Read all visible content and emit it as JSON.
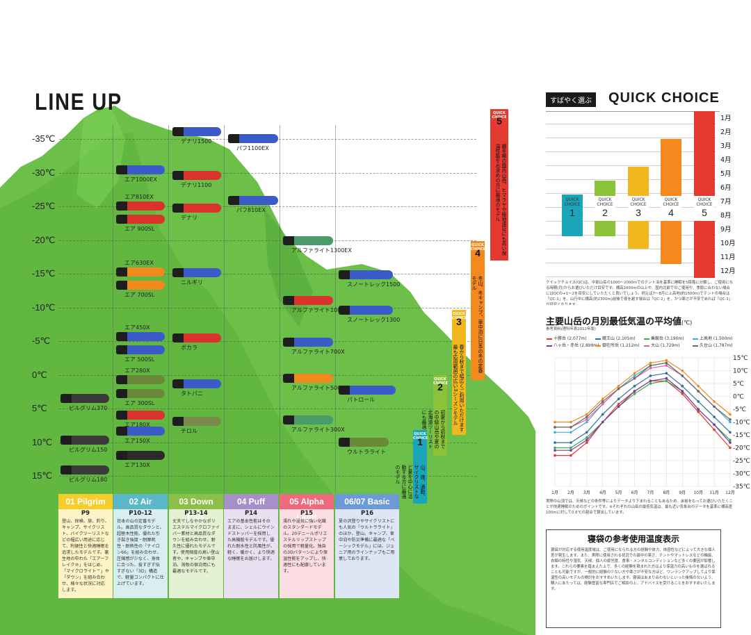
{
  "title": "LINE UP",
  "temperatures": [
    "-35℃",
    "-30℃",
    "-25℃",
    "-20℃",
    "-15℃",
    "-10℃",
    "-5℃",
    "0℃",
    "5℃",
    "10℃",
    "15℃"
  ],
  "bags": {
    "pilgrim": [
      {
        "label": "ピルグリム370",
        "color": "#3a3a3a"
      },
      {
        "label": "ピルグリム150",
        "color": "#3a3a3a"
      },
      {
        "label": "ピルグリム180",
        "color": "#3a3a3a"
      }
    ],
    "air": [
      {
        "label": "エア1000EX",
        "color": "#3b5bc8"
      },
      {
        "label": "エア810EX",
        "color": "#d9332b"
      },
      {
        "label": "エア 900SL",
        "color": "#d9332b"
      },
      {
        "label": "エア630EX",
        "color": "#f08a1c"
      },
      {
        "label": "エア 700SL",
        "color": "#f08a1c"
      },
      {
        "label": "エア450X",
        "color": "#3b5bc8"
      },
      {
        "label": "エア 500SL",
        "color": "#3b5bc8"
      },
      {
        "label": "エア280X",
        "color": "#6a8a3a"
      },
      {
        "label": "エア 300SL",
        "color": "#6a8a3a"
      },
      {
        "label": "エア180X",
        "color": "#d9332b"
      },
      {
        "label": "エア150X",
        "color": "#3b5bc8"
      },
      {
        "label": "エア130X",
        "color": "#2a2a2a"
      }
    ],
    "downplus": [
      {
        "label": "デナリ1500",
        "color": "#3b5bc8"
      },
      {
        "label": "デナリ1100",
        "color": "#d9332b"
      },
      {
        "label": "デナリ",
        "color": "#d9332b"
      },
      {
        "label": "ニルギリ",
        "color": "#3b5bc8"
      },
      {
        "label": "ポカラ",
        "color": "#d9332b"
      },
      {
        "label": "タトパニ",
        "color": "#3b5bc8"
      },
      {
        "label": "チロル",
        "color": "#7a8a4a"
      }
    ],
    "puff": [
      {
        "label": "パフ1100EX",
        "color": "#3b5bc8"
      },
      {
        "label": "パフ810EX",
        "color": "#3b5bc8"
      }
    ],
    "alphalight": [
      {
        "label": "アルファライト1300EX",
        "color": "#4a9a6a"
      },
      {
        "label": "アルファライト1000EX",
        "color": "#d9332b"
      },
      {
        "label": "アルファライト700X",
        "color": "#3b5bc8"
      },
      {
        "label": "アルファライト500X",
        "color": "#f08a1c"
      },
      {
        "label": "アルファライト300X",
        "color": "#4a9a6a"
      }
    ],
    "basic": [
      {
        "label": "スノートレック1500",
        "color": "#3b5bc8"
      },
      {
        "label": "スノートレック1300",
        "color": "#3b5bc8"
      },
      {
        "label": "パトロール",
        "color": "#3b5bc8"
      },
      {
        "label": "ウルトラライト",
        "color": "#6a8a3a"
      }
    ]
  },
  "cards": [
    {
      "name": "01 Pilgrim",
      "pages": "P9",
      "head_color": "#f5ce2c",
      "body_color": "#fdf3c6",
      "text": "登山、探検、旅、釣り、キャンプ、サイクリスト、バイクツーリストなどの幅広い用途に応じて、利便性と快適睡眠を追求したモデルです。裏生地の中わた「エアーフレイク®」をはじめ、「マイクロライト™」や「ダウン」を組み合わせ、様々な状況に対応します。"
    },
    {
      "name": "02 Air",
      "pages": "P10-12",
      "head_color": "#5ab8c8",
      "body_color": "#d8eef1",
      "text": "日本の山の定番モデル。高品質なダウンと、超極木性能、優れた引き裂き強度・耐摩耗性・耐熱性の「ナイロン66」を組み合わせ、圧縮感が少なく、身体に合った、抜すぎず伝すぎない「3D」構造で、軽量コンパクトに仕上げています。"
    },
    {
      "name": "03 Down Plus",
      "pages": "P13-14",
      "head_color": "#8cc04a",
      "body_color": "#e4f1d3",
      "text": "丈夫でしなやかなポリエステルマイクロファイバー素材と高品質なダウンを組み合わせ、耐久性に優れたモデルです。使用頻度の高い登山者や、キャンプや車中泊、海牧の宿泊用にも最適なモデルです。"
    },
    {
      "name": "04 Puff",
      "pages": "P14",
      "head_color": "#a98fc9",
      "body_color": "#e9e0f2",
      "text": "エアの基本性能はそのままに、シェルにウインドストッパーを採用した高機能モデルです。優れた耐水性と防風性が、軽く、暖かく、より快適な睡眠をお届けします。"
    },
    {
      "name": "05 Alpha Light",
      "pages": "P15",
      "head_color": "#ee6a7e",
      "body_color": "#fbdde2",
      "text": "濡れや湿気に強い化繊のスタンダードモデル。20デニールポリエステルリップストップの採用で軽量化。独自の3Dパターンにより保温性能をアップし、快適性にも配慮しています。"
    },
    {
      "name": "06/07 Basic",
      "pages": "P16",
      "head_color": "#6b9ad6",
      "body_color": "#dce6f5",
      "text": "夏の沢登りやサイクリストにも人気の「ウルトラライト」のほか、登山、キャンプ、車中泊や防災準備に最適な「ベーシックモデル」には、ジュニア用のラインナップもご用意しております。"
    }
  ],
  "quick_choice_columns": [
    {
      "tag": "QUICK CHOICE",
      "num": "1",
      "color": "#1aa6b8",
      "text": "山、旅、通勤、サイクリストなど夏を中心に活動する方に最適のモデル"
    },
    {
      "tag": "QUICK CHOICE",
      "num": "2",
      "color": "#8cc23a",
      "text": "初夏から初秋までの中級山岳や夏の北海道ツーリストにも最適"
    },
    {
      "tag": "QUICK CHOICE",
      "num": "3",
      "color": "#f0b81e",
      "text": "春から秋まで幅広くご利用いただけます最も応用範囲の広い3シーズンモデル"
    },
    {
      "tag": "QUICK CHOICE",
      "num": "4",
      "color": "#f48a1e",
      "text": "冬山、冬キャンプ、車中泊に日本の冬の定番モデル"
    },
    {
      "tag": "QUICK CHOICE",
      "num": "5",
      "color": "#e53a32",
      "text": "厳冬期の国内山岳、ヒマラヤや極地遠征にも高い保温性能をお求めの方に最適のモデル"
    }
  ],
  "right_panel": {
    "badge": "すばやく選ぶ",
    "heading": "QUICK CHOICE",
    "months": [
      "1月",
      "2月",
      "3月",
      "4月",
      "5月",
      "6月",
      "7月",
      "8月",
      "9月",
      "10月",
      "11月",
      "12月"
    ],
    "qc_tag": "QUICK CHOICE",
    "qc_bars": [
      {
        "num": "1",
        "color": "#1aa6b8"
      },
      {
        "num": "2",
        "color": "#8cc23a"
      },
      {
        "num": "3",
        "color": "#f0b81e"
      },
      {
        "num": "4",
        "color": "#f48a1e"
      },
      {
        "num": "5",
        "color": "#e53a32"
      }
    ],
    "note": "クイックチョイス(QC)は、中部山岳の1000〜2000mでのテント泊を基準に睡眠を5段階に分類し、ご使用になる時期(月)からお選びいただけ目安です。標高2000mの山上や、国内北部でのご使用や、季節に合わない場合にはQCの+1〜2を目安にしていただくと良いでしょう。例えば7〜8月に上高地(約1500m)でテントの場合は「QC-1」を、山行中に標高(約2300m)前後で夜を越す場合は「QC-2」を、かつ寒さが不安であれば「QC-3」が目安となります。",
    "chart_title": "主要山岳の月別最低気温の平均値",
    "chart_unit": "(℃)",
    "chart_source": "参考資料(理科年表2012年版)",
    "footnote": "実際の山頂では、天候などの条件等によりデータより下まわることもあるため、余裕をもってお選びいただくことが快適睡眠のためのポイントです。※それぞれの山岳の最低気温は、最も近い気象台のデータを基準に標高差100mに対して0.6℃の割合で算出しています。",
    "box_title": "寝袋の参考使用温度表示",
    "box_text": "寝袋が対応する使用温度域は、ご使用になられる方の経験や体力、体感性などによって大きな個人差が発生します。また、実際に使用される状況での最中の寒さ、テントやマットレスなどの機能、衣類の特性や湿気、天候、個人の疲労度、食事・メンタルコンディションなど多くの要因が影響します。これらの要素を踏まえた上で、多くの経験を積まれた方はより保温力の高いものを選ばれることも可能ですが、一般的に経験の少ない方や寒さが不安な方ほど、ワンランクアップしてより保温性の高いモデルの検討をおすすめいたします。寝袋はあまり合わないといった後悔のないよう、購入にあたっては、経験豊富な専門店でご相談の上、アドバイスを受けることをおすすめいたします。"
  },
  "chart_data": {
    "type": "line",
    "title": "主要山岳の月別最低気温の平均値",
    "ylabel": "(℃)",
    "categories": [
      "1月",
      "2月",
      "3月",
      "4月",
      "5月",
      "6月",
      "7月",
      "8月",
      "9月",
      "10月",
      "11月",
      "12月"
    ],
    "ylim": [
      -35,
      15
    ],
    "yticks": [
      "15℃",
      "10℃",
      "5℃",
      "0℃",
      "-5℃",
      "-10℃",
      "-15℃",
      "-20℃",
      "-25℃",
      "-30℃",
      "-35℃"
    ],
    "grid": true,
    "legend_position": "top",
    "series": [
      {
        "name": "十勝岳 (2,077m)",
        "color": "#e23a2e",
        "values": [
          -23,
          -23,
          -18,
          -10,
          -3,
          2,
          6,
          6,
          1,
          -6,
          -13,
          -20
        ]
      },
      {
        "name": "蔵王山 (2,105m)",
        "color": "#2f6f9e",
        "values": [
          -18,
          -18,
          -14,
          -7,
          -1,
          4,
          8,
          9,
          4,
          -2,
          -8,
          -14
        ]
      },
      {
        "name": "乗鞍岳 (3,190m)",
        "color": "#3aaa4a",
        "values": [
          -20,
          -20,
          -16,
          -10,
          -4,
          1,
          5,
          6,
          2,
          -5,
          -11,
          -17
        ]
      },
      {
        "name": "上高地 (1,500m)",
        "color": "#3cb0d8",
        "values": [
          -14,
          -14,
          -10,
          -3,
          3,
          8,
          12,
          13,
          8,
          2,
          -4,
          -10
        ]
      },
      {
        "name": "八ヶ岳・赤岳 (2,899m)",
        "color": "#7a3aa0",
        "values": [
          -21,
          -21,
          -17,
          -10,
          -4,
          2,
          6,
          7,
          2,
          -5,
          -11,
          -18
        ]
      },
      {
        "name": "御在所岳 (1,212m)",
        "color": "#f08a1c",
        "values": [
          -10,
          -10,
          -7,
          -1,
          4,
          9,
          13,
          14,
          10,
          4,
          -2,
          -7
        ]
      },
      {
        "name": "大山 (1,729m)",
        "color": "#e05fa0",
        "values": [
          -12,
          -12,
          -9,
          -3,
          3,
          7,
          11,
          12,
          8,
          2,
          -4,
          -9
        ]
      },
      {
        "name": "久住山 (1,787m)",
        "color": "#6a6a6a",
        "values": [
          -12,
          -12,
          -8,
          -2,
          3,
          7,
          12,
          13,
          8,
          2,
          -4,
          -9
        ]
      }
    ]
  }
}
